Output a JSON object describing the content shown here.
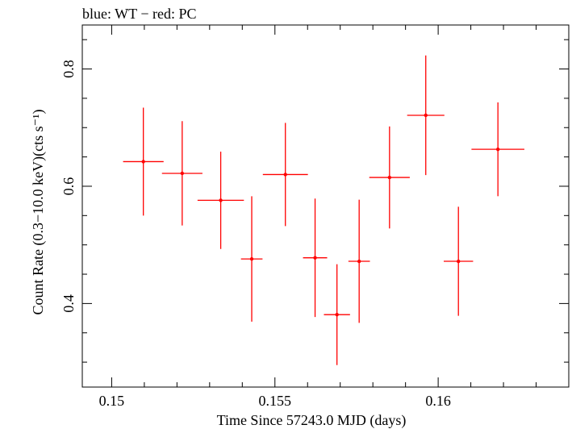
{
  "chart_data": {
    "type": "scatter",
    "title": "blue: WT − red: PC",
    "xlabel": "Time Since 57243.0 MJD (days)",
    "ylabel": "Count Rate (0.3−10.0 keV)(cts s⁻¹)",
    "xlim": [
      0.1491,
      0.164
    ],
    "ylim": [
      0.2575,
      0.875
    ],
    "x_ticks": [
      0.15,
      0.155,
      0.16
    ],
    "x_tick_labels": [
      "0.15",
      "0.155",
      "0.16"
    ],
    "y_ticks": [
      0.4,
      0.6,
      0.8
    ],
    "y_tick_labels": [
      "0.4",
      "0.6",
      "0.8"
    ],
    "grid": false,
    "series": [
      {
        "color": "#ff0000",
        "points": [
          {
            "x": 0.15097,
            "xerr": 0.00062,
            "y": 0.642,
            "yerr": 0.092
          },
          {
            "x": 0.15216,
            "xerr": 0.00062,
            "y": 0.622,
            "yerr": 0.089
          },
          {
            "x": 0.15334,
            "xerr": 0.00071,
            "y": 0.576,
            "yerr": 0.083
          },
          {
            "x": 0.15429,
            "xerr": 0.00033,
            "y": 0.476,
            "yerr": 0.107
          },
          {
            "x": 0.15532,
            "xerr": 0.00069,
            "y": 0.62,
            "yerr": 0.088
          },
          {
            "x": 0.15623,
            "xerr": 0.00037,
            "y": 0.478,
            "yerr": 0.101
          },
          {
            "x": 0.1569,
            "xerr": 0.0004,
            "y": 0.381,
            "yerr": 0.086
          },
          {
            "x": 0.15758,
            "xerr": 0.00033,
            "y": 0.472,
            "yerr": 0.105
          },
          {
            "x": 0.15851,
            "xerr": 0.00062,
            "y": 0.615,
            "yerr": 0.087
          },
          {
            "x": 0.15962,
            "xerr": 0.00057,
            "y": 0.721,
            "yerr": 0.102
          },
          {
            "x": 0.16062,
            "xerr": 0.00045,
            "y": 0.472,
            "yerr": 0.093
          },
          {
            "x": 0.16183,
            "xerr": 0.00081,
            "y": 0.663,
            "yerr": 0.08
          }
        ]
      }
    ]
  }
}
